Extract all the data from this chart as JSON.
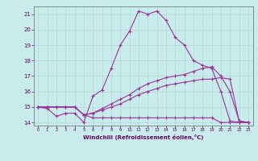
{
  "background_color": "#c8ecec",
  "line_color": "#993399",
  "grid_color": "#b0d0d0",
  "xlabel": "Windchill (Refroidissement éolien,°C)",
  "xlabel_color": "#660066",
  "xtick_color": "#660066",
  "ytick_color": "#660066",
  "xlim": [
    -0.5,
    23.5
  ],
  "ylim": [
    13.8,
    21.5
  ],
  "yticks": [
    14,
    15,
    16,
    17,
    18,
    19,
    20,
    21
  ],
  "xticks": [
    0,
    1,
    2,
    3,
    4,
    5,
    6,
    7,
    8,
    9,
    10,
    11,
    12,
    13,
    14,
    15,
    16,
    17,
    18,
    19,
    20,
    21,
    22,
    23
  ],
  "line1_x": [
    0,
    1,
    2,
    3,
    4,
    5,
    6,
    7,
    8,
    9,
    10,
    11,
    12,
    13,
    14,
    15,
    16,
    17,
    18,
    19,
    20,
    21,
    22,
    23
  ],
  "line1_y": [
    15.0,
    14.9,
    14.4,
    14.6,
    14.6,
    14.0,
    15.7,
    16.1,
    17.5,
    19.0,
    19.9,
    21.2,
    21.0,
    21.2,
    20.6,
    19.5,
    19.0,
    18.0,
    17.7,
    17.5,
    16.0,
    14.1,
    14.0,
    14.0
  ],
  "line2_x": [
    0,
    1,
    2,
    3,
    4,
    5,
    6,
    7,
    8,
    9,
    10,
    11,
    12,
    13,
    14,
    15,
    16,
    17,
    18,
    19,
    20,
    21,
    22,
    23
  ],
  "line2_y": [
    15.0,
    15.0,
    15.0,
    15.0,
    15.0,
    14.5,
    14.3,
    14.3,
    14.3,
    14.3,
    14.3,
    14.3,
    14.3,
    14.3,
    14.3,
    14.3,
    14.3,
    14.3,
    14.3,
    14.3,
    14.0,
    14.0,
    14.0,
    14.0
  ],
  "line3_x": [
    0,
    1,
    2,
    3,
    4,
    5,
    6,
    7,
    8,
    9,
    10,
    11,
    12,
    13,
    14,
    15,
    16,
    17,
    18,
    19,
    20,
    21,
    22,
    23
  ],
  "line3_y": [
    15.0,
    15.0,
    15.0,
    15.0,
    15.0,
    14.5,
    14.6,
    14.8,
    15.0,
    15.2,
    15.5,
    15.8,
    16.0,
    16.2,
    16.4,
    16.5,
    16.6,
    16.7,
    16.8,
    16.8,
    16.9,
    16.8,
    14.1,
    14.0
  ],
  "line4_x": [
    0,
    1,
    2,
    3,
    4,
    5,
    6,
    7,
    8,
    9,
    10,
    11,
    12,
    13,
    14,
    15,
    16,
    17,
    18,
    19,
    20,
    21,
    22,
    23
  ],
  "line4_y": [
    15.0,
    15.0,
    15.0,
    15.0,
    15.0,
    14.5,
    14.6,
    14.9,
    15.2,
    15.5,
    15.8,
    16.2,
    16.5,
    16.7,
    16.9,
    17.0,
    17.1,
    17.3,
    17.5,
    17.6,
    17.0,
    16.0,
    14.1,
    14.0
  ],
  "figwidth": 3.2,
  "figheight": 2.0,
  "dpi": 100
}
